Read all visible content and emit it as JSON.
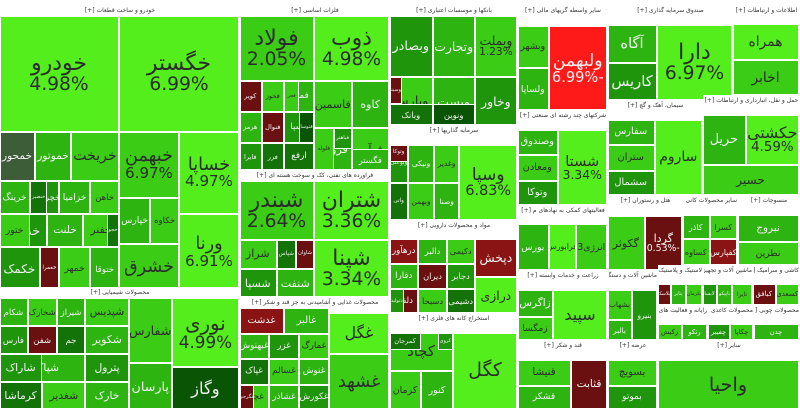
{
  "sectors": [
    {
      "id": "auto",
      "title": "خودرو و ساخت قطعات [+]",
      "tiles": [
        {
          "name": "خگستر",
          "pct": "6.99%"
        },
        {
          "name": "خودرو",
          "pct": "4.98%"
        },
        {
          "name": "خساپا",
          "pct": "4.97%"
        },
        {
          "name": "خبهمن",
          "pct": "6.97%"
        },
        {
          "name": "ورنا",
          "pct": "6.91%"
        },
        {
          "name": "خریخت",
          "pct": ""
        },
        {
          "name": "خموتور",
          "pct": ""
        },
        {
          "name": "خمحور",
          "pct": ""
        },
        {
          "name": "خکاوه",
          "pct": ""
        },
        {
          "name": "خپارس",
          "pct": ""
        },
        {
          "name": "خاهن",
          "pct": ""
        },
        {
          "name": "خزامیا",
          "pct": ""
        },
        {
          "name": "خچرخش",
          "pct": ""
        },
        {
          "name": "خرینگ",
          "pct": ""
        },
        {
          "name": "خفنر",
          "pct": ""
        },
        {
          "name": "خلنت",
          "pct": ""
        },
        {
          "name": "خدیزل",
          "pct": ""
        },
        {
          "name": "خشرق",
          "pct": ""
        },
        {
          "name": "ختوقا",
          "pct": ""
        },
        {
          "name": "خمهر",
          "pct": ""
        },
        {
          "name": "خعمرا",
          "pct": ""
        },
        {
          "name": "خکمک",
          "pct": ""
        },
        {
          "name": "خنصیر",
          "pct": ""
        },
        {
          "name": "ختور",
          "pct": ""
        },
        {
          "name": "خجو",
          "pct": ""
        }
      ]
    },
    {
      "id": "chem",
      "title": "محصولات شیمیایی [+]",
      "tiles": [
        {
          "name": "نوری",
          "pct": "4.99%"
        },
        {
          "name": "پارسان",
          "pct": ""
        },
        {
          "name": "شپدیس",
          "pct": ""
        },
        {
          "name": "شکویر",
          "pct": ""
        },
        {
          "name": "پترول",
          "pct": ""
        },
        {
          "name": "شیراز",
          "pct": ""
        },
        {
          "name": "شخارک",
          "pct": ""
        },
        {
          "name": "جم",
          "pct": ""
        },
        {
          "name": "شفن",
          "pct": ""
        },
        {
          "name": "شکام",
          "pct": ""
        },
        {
          "name": "فارس",
          "pct": ""
        },
        {
          "name": "شپاکسا",
          "pct": ""
        },
        {
          "name": "وگاز",
          "pct": ""
        },
        {
          "name": "شفارس",
          "pct": ""
        },
        {
          "name": "خارک",
          "pct": ""
        },
        {
          "name": "شغدیر",
          "pct": ""
        },
        {
          "name": "کرماشا",
          "pct": ""
        },
        {
          "name": "شاراک",
          "pct": ""
        }
      ]
    },
    {
      "id": "metal",
      "title": "فلزات اساسی [+]",
      "tiles": [
        {
          "name": "ذوب",
          "pct": "4.98%"
        },
        {
          "name": "فولاد",
          "pct": "2.05%"
        },
        {
          "name": "فملی",
          "pct": ""
        },
        {
          "name": "فخوز",
          "pct": ""
        },
        {
          "name": "کاوه",
          "pct": ""
        },
        {
          "name": "فاسمین",
          "pct": ""
        },
        {
          "name": "فسپا",
          "pct": ""
        },
        {
          "name": "فنوال",
          "pct": ""
        },
        {
          "name": "کویر",
          "pct": ""
        },
        {
          "name": "فزر",
          "pct": ""
        },
        {
          "name": "هرمز",
          "pct": ""
        },
        {
          "name": "ارفع",
          "pct": ""
        },
        {
          "name": "فایرا",
          "pct": ""
        },
        {
          "name": "فجر",
          "pct": ""
        },
        {
          "name": "فرآور",
          "pct": ""
        },
        {
          "name": "فروس",
          "pct": ""
        },
        {
          "name": "فباهنر",
          "pct": ""
        },
        {
          "name": "فلوله",
          "pct": ""
        },
        {
          "name": "فگستر",
          "pct": ""
        },
        {
          "name": "فتوسا",
          "pct": ""
        }
      ]
    },
    {
      "id": "petro",
      "title": "فراورده های نفتی، کک و سوخت هسته ای [+]",
      "tiles": [
        {
          "name": "شتران",
          "pct": "3.36%"
        },
        {
          "name": "شبندر",
          "pct": "2.64%"
        },
        {
          "name": "شپنا",
          "pct": "3.34%"
        },
        {
          "name": "شبریز",
          "pct": ""
        },
        {
          "name": "شراز",
          "pct": ""
        },
        {
          "name": "شسپا",
          "pct": ""
        },
        {
          "name": "شاوان",
          "pct": ""
        },
        {
          "name": "شپاس",
          "pct": ""
        },
        {
          "name": "شنفت",
          "pct": ""
        }
      ]
    },
    {
      "id": "food",
      "title": "محصولات غذایی و آشامیدنی به جز قند و شکر [+]",
      "tiles": [
        {
          "name": "غگل",
          "pct": ""
        },
        {
          "name": "غالبر",
          "pct": ""
        },
        {
          "name": "غدشت",
          "pct": ""
        },
        {
          "name": "غمارگ",
          "pct": ""
        },
        {
          "name": "غزر",
          "pct": ""
        },
        {
          "name": "غبهنوش",
          "pct": ""
        },
        {
          "name": "غشهد",
          "pct": ""
        },
        {
          "name": "غنوش",
          "pct": ""
        },
        {
          "name": "غسالم",
          "pct": ""
        },
        {
          "name": "غپاک",
          "pct": ""
        },
        {
          "name": "غکورش",
          "pct": ""
        },
        {
          "name": "غشاذر",
          "pct": ""
        },
        {
          "name": "غچین",
          "pct": ""
        },
        {
          "name": "غگرجی",
          "pct": ""
        }
      ]
    },
    {
      "id": "bank",
      "title": "بانکها و موسسات اعتباری [+]",
      "tiles": [
        {
          "name": "وبملت",
          "pct": "1.23%"
        },
        {
          "name": "وتجارت",
          "pct": ""
        },
        {
          "name": "وبصادر",
          "pct": ""
        },
        {
          "name": "وپارس",
          "pct": ""
        },
        {
          "name": "وخاور",
          "pct": ""
        },
        {
          "name": "وپست",
          "pct": ""
        },
        {
          "name": "وبانک",
          "pct": ""
        },
        {
          "name": "ونوین",
          "pct": ""
        },
        {
          "name": "وسینا",
          "pct": ""
        }
      ]
    },
    {
      "id": "invest",
      "title": "سرمایه گذاریها [+]",
      "tiles": [
        {
          "name": "وسپا",
          "pct": "6.83%"
        },
        {
          "name": "وغدیر",
          "pct": ""
        },
        {
          "name": "ونیکی",
          "pct": ""
        },
        {
          "name": "وبوعلی",
          "pct": ""
        },
        {
          "name": "وصنا",
          "pct": ""
        },
        {
          "name": "وبهمن",
          "pct": ""
        },
        {
          "name": "واتی",
          "pct": ""
        },
        {
          "name": "وتوکا",
          "pct": ""
        }
      ]
    },
    {
      "id": "pharma",
      "title": "مواد و محصولات دارویی [+]",
      "tiles": [
        {
          "name": "دکیمی",
          "pct": ""
        },
        {
          "name": "دپخش",
          "pct": ""
        },
        {
          "name": "دالبر",
          "pct": ""
        },
        {
          "name": "درازی",
          "pct": ""
        },
        {
          "name": "دجابر",
          "pct": ""
        },
        {
          "name": "دیران",
          "pct": ""
        },
        {
          "name": "دفارا",
          "pct": ""
        },
        {
          "name": "درهآور",
          "pct": ""
        },
        {
          "name": "دشیمی",
          "pct": ""
        },
        {
          "name": "دسبحا",
          "pct": ""
        },
        {
          "name": "دلقما",
          "pct": ""
        },
        {
          "name": "دتولید",
          "pct": ""
        }
      ]
    },
    {
      "id": "mining",
      "title": "استخراج کانه های فلزی [+]",
      "tiles": [
        {
          "name": "کگل",
          "pct": ""
        },
        {
          "name": "کچاد",
          "pct": ""
        },
        {
          "name": "کنور",
          "pct": ""
        },
        {
          "name": "کرمان",
          "pct": ""
        },
        {
          "name": "کمرجان",
          "pct": ""
        },
        {
          "name": "کروی",
          "pct": ""
        }
      ]
    },
    {
      "id": "fund",
      "title": "سایر واسطه گریهای مالی [+]",
      "tiles": [
        {
          "name": "ولبهمن",
          "pct": "-6.99%"
        },
        {
          "name": "وبشهر",
          "pct": ""
        },
        {
          "name": "ولساپا",
          "pct": ""
        }
      ]
    },
    {
      "id": "multi",
      "title": "شرکتهای چند رشته ای صنعتی [+]",
      "tiles": [
        {
          "name": "شستا",
          "pct": "3.34%"
        },
        {
          "name": "وصندوق",
          "pct": ""
        },
        {
          "name": "ومعادن",
          "pct": ""
        },
        {
          "name": "وتوکا",
          "pct": ""
        }
      ]
    },
    {
      "id": "aux",
      "title": "فعالیتهای کمکی به نهادهای م [+]",
      "tiles": [
        {
          "name": "انرژی3",
          "pct": ""
        },
        {
          "name": "فرابورس",
          "pct": ""
        },
        {
          "name": "بورس",
          "pct": ""
        }
      ]
    },
    {
      "id": "farm",
      "title": "زراعت و خدمات وابسته [+]",
      "tiles": [
        {
          "name": "سپید",
          "pct": ""
        },
        {
          "name": "زاگرس",
          "pct": ""
        },
        {
          "name": "زمگسا",
          "pct": ""
        }
      ]
    },
    {
      "id": "sugar",
      "title": "قند و شکر [+]",
      "tiles": [
        {
          "name": "قثابت",
          "pct": ""
        },
        {
          "name": "قنیشا",
          "pct": ""
        },
        {
          "name": "قشکر",
          "pct": ""
        }
      ]
    },
    {
      "id": "etf",
      "title": "صندوق سرمایه گذاری [+]",
      "tiles": [
        {
          "name": "دارا",
          "pct": "6.97%"
        },
        {
          "name": "آگاه",
          "pct": ""
        },
        {
          "name": "کاریس",
          "pct": ""
        }
      ]
    },
    {
      "id": "telecom",
      "title": "اطلاعات و ارتباطات [+]",
      "tiles": [
        {
          "name": "همراه",
          "pct": ""
        },
        {
          "name": "اخابر",
          "pct": ""
        }
      ]
    },
    {
      "id": "cement",
      "title": "سیمان، آهک و گچ [+]",
      "tiles": [
        {
          "name": "ساروم",
          "pct": ""
        },
        {
          "name": "سفارس",
          "pct": ""
        },
        {
          "name": "ستران",
          "pct": ""
        },
        {
          "name": "سشمال",
          "pct": ""
        }
      ]
    },
    {
      "id": "realestate",
      "title": "انبوه سازی، املاک و مستغلات [+]",
      "tiles": [
        {
          "name": "ثشرق",
          "pct": ""
        },
        {
          "name": "ثاخت",
          "pct": ""
        },
        {
          "name": "ثنوسا",
          "pct": ""
        }
      ]
    },
    {
      "id": "transport",
      "title": "حمل و نقل، انبارداری و ارتباطات [+]",
      "tiles": [
        {
          "name": "حکشتی",
          "pct": "4.59%"
        },
        {
          "name": "حریل",
          "pct": ""
        },
        {
          "name": "حسیر",
          "pct": ""
        }
      ]
    },
    {
      "id": "hotel",
      "title": "هتل و رستوران [+]",
      "tiles": [
        {
          "name": "گردا",
          "pct": "-0.53%"
        },
        {
          "name": "گکوثر",
          "pct": ""
        }
      ]
    },
    {
      "id": "mineral",
      "title": "سایر محصولات کانی غیرفلزی [+]",
      "tiles": [
        {
          "name": "کسرا",
          "pct": ""
        },
        {
          "name": "کاذر",
          "pct": ""
        },
        {
          "name": "کفپارس",
          "pct": ""
        },
        {
          "name": "کساوه",
          "pct": ""
        }
      ]
    },
    {
      "id": "electric",
      "title": "ماشین آلات و دستگاههای برقی [+]",
      "tiles": [
        {
          "name": "بنیرو",
          "pct": ""
        },
        {
          "name": "بشهاب",
          "pct": ""
        },
        {
          "name": "بالبر",
          "pct": ""
        }
      ]
    },
    {
      "id": "tile",
      "title": "کاشی و سرامیک [+]",
      "tiles": [
        {
          "name": "کسعدی",
          "pct": ""
        },
        {
          "name": "کبافق",
          "pct": ""
        }
      ]
    },
    {
      "id": "textile",
      "title": "منسوجات [+]",
      "tiles": [
        {
          "name": "نبروج",
          "pct": ""
        },
        {
          "name": "نطرین",
          "pct": ""
        }
      ]
    },
    {
      "id": "rubber",
      "title": "لاستیک و پلاستیک [+]",
      "tiles": [
        {
          "name": "پکرمان",
          "pct": ""
        },
        {
          "name": "پتایر",
          "pct": ""
        },
        {
          "name": "پلاسک",
          "pct": ""
        }
      ]
    },
    {
      "id": "machinery",
      "title": "ماشین آلات و تجهیزات [+]",
      "tiles": [
        {
          "name": "تایرا",
          "pct": ""
        },
        {
          "name": "تاپیکو",
          "pct": ""
        },
        {
          "name": "لابسا",
          "pct": ""
        }
      ]
    },
    {
      "id": "misc",
      "title": "عرضه [+]",
      "tiles": [
        {
          "name": "بسویچ",
          "pct": ""
        },
        {
          "name": "بموتو",
          "pct": ""
        }
      ]
    },
    {
      "id": "computer",
      "title": "رایانه و فعالیت های وابسته [+]",
      "tiles": [
        {
          "name": "رتکو",
          "pct": ""
        },
        {
          "name": "رکیش",
          "pct": ""
        }
      ]
    },
    {
      "id": "media",
      "title": "محصولات کاغذی [+]",
      "tiles": [
        {
          "name": "چکاپا",
          "pct": ""
        },
        {
          "name": "چفیبر",
          "pct": ""
        }
      ]
    },
    {
      "id": "wood",
      "title": "محصولات چوبی [+]",
      "tiles": [
        {
          "name": "چدن",
          "pct": ""
        }
      ]
    },
    {
      "id": "other1",
      "title": "سایر [+]",
      "tiles": [
        {
          "name": "واحیا",
          "pct": ""
        }
      ]
    }
  ],
  "colors": {
    "up_max": "#53ee1b",
    "up_low": "#137208",
    "down": "#8a1414",
    "down_max": "#ff1a1a",
    "border": "#ffffff"
  }
}
